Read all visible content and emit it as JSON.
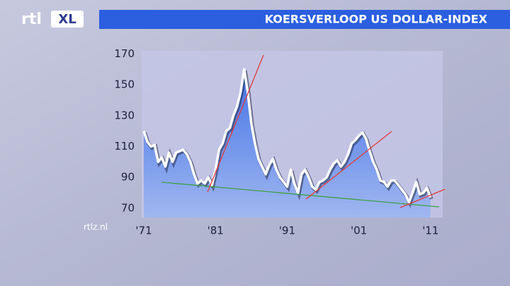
{
  "brand": "rtl",
  "brand_badge": "XL",
  "source": "rtlz.nl",
  "chart_data": {
    "type": "area",
    "title": "KOERSVERLOOP US DOLLAR-INDEX",
    "x": [
      1971,
      1971.5,
      1972,
      1972.5,
      1973,
      1973.5,
      1974,
      1974.5,
      1975,
      1975.5,
      1976,
      1976.5,
      1977,
      1977.5,
      1978,
      1978.5,
      1979,
      1979.5,
      1980,
      1980.5,
      1981,
      1981.5,
      1982,
      1982.5,
      1983,
      1983.5,
      1984,
      1984.5,
      1985,
      1985.5,
      1986,
      1986.5,
      1987,
      1987.5,
      1988,
      1988.5,
      1989,
      1989.5,
      1990,
      1990.5,
      1991,
      1991.5,
      1992,
      1992.5,
      1993,
      1993.5,
      1994,
      1994.5,
      1995,
      1995.5,
      1996,
      1996.5,
      1997,
      1997.5,
      1998,
      1998.5,
      1999,
      1999.5,
      2000,
      2000.5,
      2001,
      2001.5,
      2002,
      2002.5,
      2003,
      2003.5,
      2004,
      2004.5,
      2005,
      2005.5,
      2006,
      2006.5,
      2007,
      2007.5,
      2008,
      2008.5,
      2009,
      2009.5,
      2010,
      2010.5,
      2011
    ],
    "values": [
      120,
      113,
      110,
      111,
      100,
      103,
      97,
      106,
      100,
      106,
      107,
      108,
      105,
      100,
      92,
      86,
      88,
      86,
      90,
      85,
      95,
      108,
      112,
      120,
      122,
      130,
      136,
      145,
      160,
      145,
      125,
      112,
      102,
      97,
      92,
      98,
      102,
      95,
      90,
      87,
      84,
      95,
      86,
      80,
      92,
      95,
      90,
      84,
      82,
      87,
      88,
      90,
      95,
      99,
      101,
      97,
      100,
      105,
      112,
      114,
      117,
      119,
      115,
      107,
      100,
      95,
      88,
      87,
      84,
      88,
      88,
      85,
      82,
      79,
      74,
      80,
      87,
      79,
      80,
      83,
      77
    ],
    "color": "#ffffff",
    "fill": "#4d7ee8",
    "xlim": [
      1970.7,
      2012.7
    ],
    "xticks": [
      {
        "value": 1971,
        "label": "'71"
      },
      {
        "value": 1981,
        "label": "'81"
      },
      {
        "value": 1991,
        "label": "'91"
      },
      {
        "value": 2001,
        "label": "'01"
      },
      {
        "value": 2011,
        "label": "'11"
      }
    ],
    "ylim": [
      64,
      172
    ],
    "yticks": [
      70,
      90,
      110,
      130,
      150,
      170
    ]
  }
}
